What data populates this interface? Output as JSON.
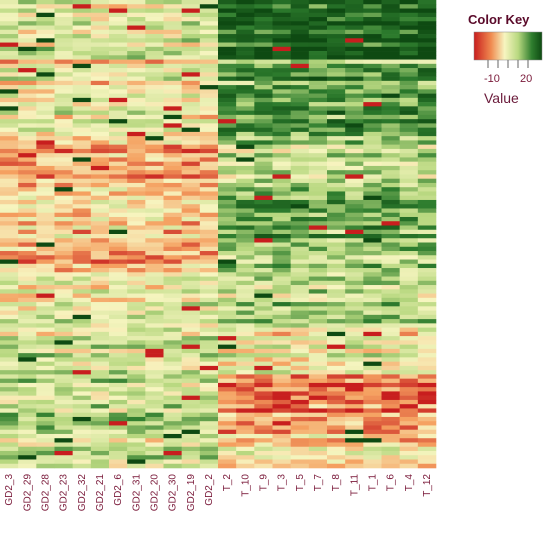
{
  "chart_data": {
    "type": "heatmap",
    "columns": [
      "GD2_3",
      "GD2_29",
      "GD2_28",
      "GD2_23",
      "GD2_32",
      "GD2_21",
      "GD2_6",
      "GD2_31",
      "GD2_20",
      "GD2_30",
      "GD2_19",
      "GD2_2",
      "T_2",
      "T_10",
      "T_9",
      "T_3",
      "T_5",
      "T_7",
      "T_8",
      "T_11",
      "T_1",
      "T_6",
      "T_4",
      "T_12"
    ],
    "group_sizes": {
      "GD2": 12,
      "T": 12
    },
    "n_rows": 110,
    "color_scale": {
      "low": -20,
      "high": 30,
      "colors": [
        "#c81e1e",
        "#f5a060",
        "#f7f5c0",
        "#b8d880",
        "#2e7d2e",
        "#0e4a12"
      ]
    },
    "legend": {
      "title": "Color Key",
      "tick_labels": [
        "-10",
        "20"
      ],
      "label": "Value",
      "placement": "top-right"
    }
  }
}
